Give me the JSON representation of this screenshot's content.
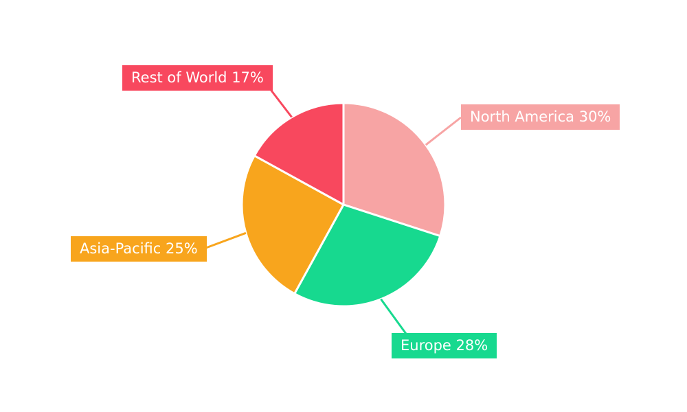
{
  "chart_data": {
    "type": "pie",
    "title": "",
    "labels": [
      "North America",
      "Europe",
      "Asia-Pacific",
      "Rest of World"
    ],
    "values": [
      30,
      28,
      25,
      17
    ],
    "unit": "%",
    "label_texts": [
      "North America 30%",
      "Europe 28%",
      "Asia-Pacific 25%",
      "Rest of World 17%"
    ],
    "colors": [
      "#F7A4A4",
      "#17D98F",
      "#F8A51D",
      "#F8485E"
    ],
    "start_angle_deg": 0,
    "direction": "clockwise",
    "legend": "none",
    "background": "#FFFFFF"
  }
}
